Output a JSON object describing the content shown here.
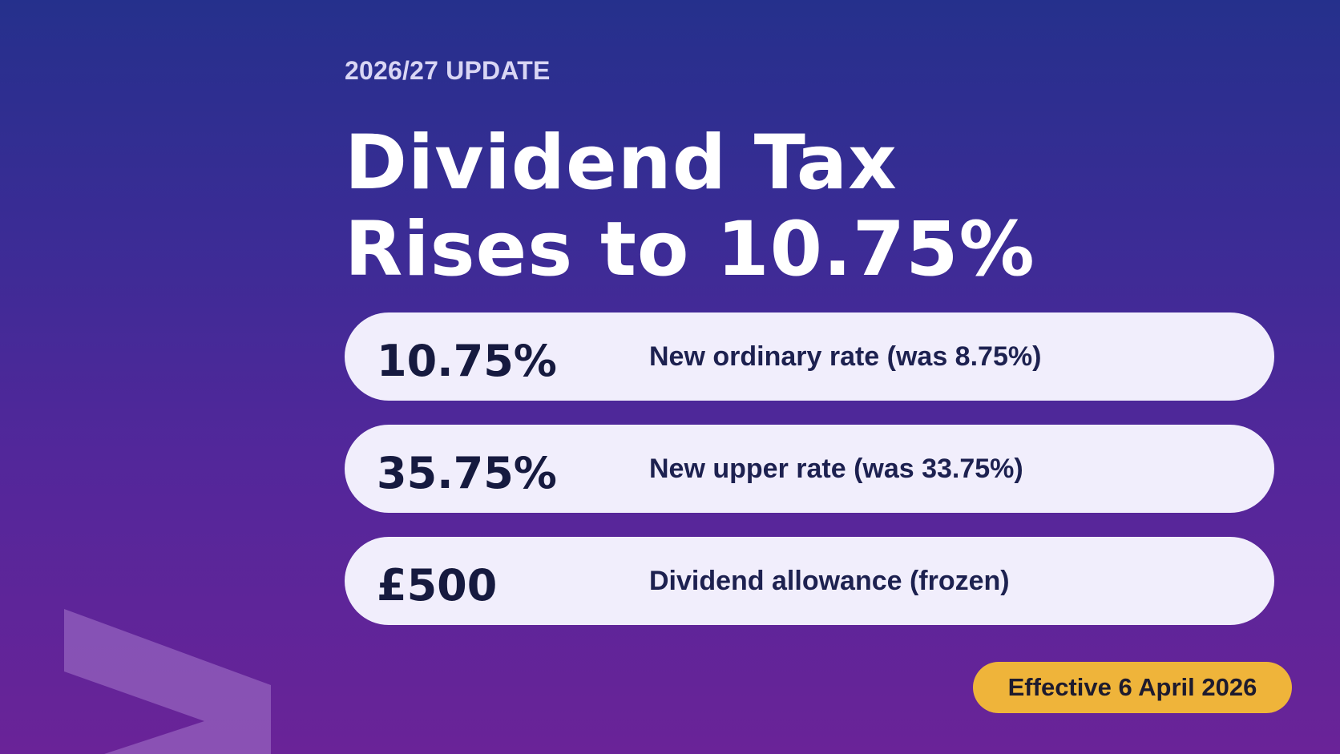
{
  "slide": {
    "eyebrow": "2026/27 UPDATE",
    "title_line_1": "Dividend Tax",
    "title_line_2": "Rises to 10.75%",
    "cards": [
      {
        "value": "10.75%",
        "label": "New ordinary rate (was 8.75%)"
      },
      {
        "value": "35.75%",
        "label": "New upper rate (was 33.75%)"
      },
      {
        "value": "£500",
        "label": "Dividend allowance (frozen)"
      }
    ],
    "badge": "Effective 6 April 2026"
  },
  "colors": {
    "background_top": "#25308c",
    "background_bottom": "#6a2398",
    "card_background": "#f1eefc",
    "card_text": "#161a3f",
    "badge_background": "#efb43a",
    "chevron": "#a579cc"
  },
  "icons": {
    "decoration": "chevron-right-icon"
  }
}
